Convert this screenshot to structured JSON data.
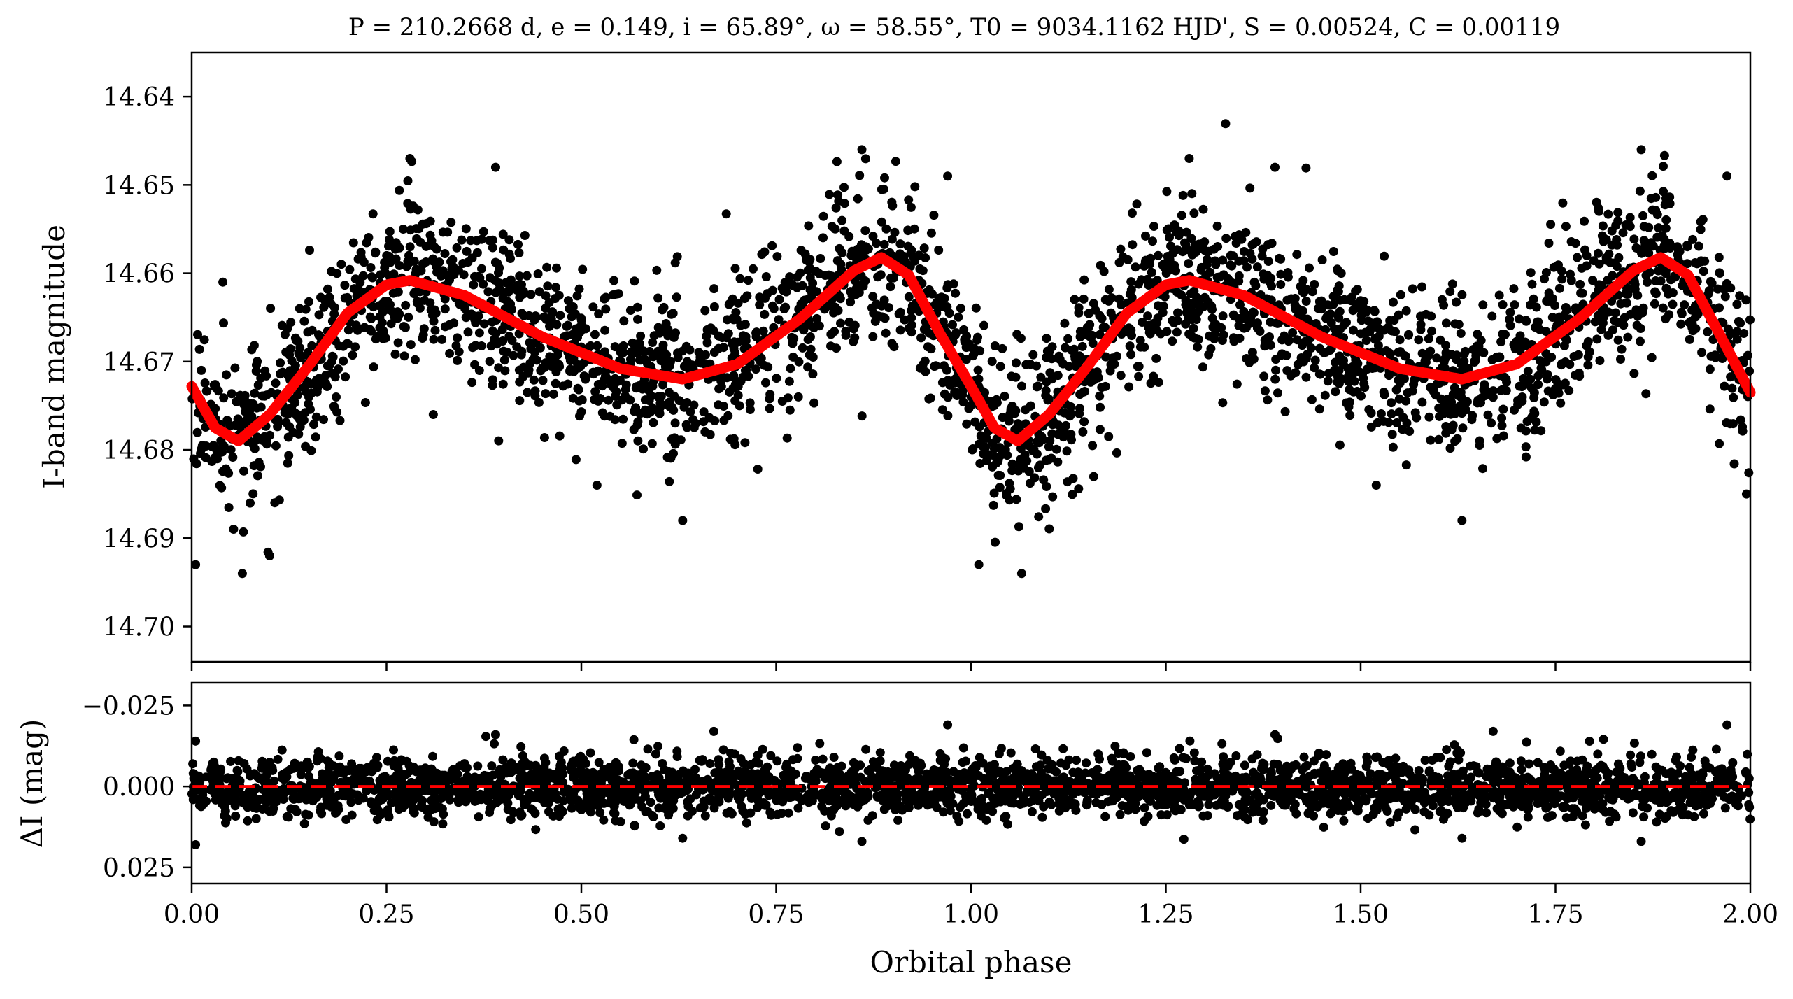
{
  "chart_data": [
    {
      "panel": "top",
      "type": "scatter",
      "title": "P = 210.2668 d, e = 0.149, i = 65.89°, ω = 58.55°, T0 = 9034.1162 HJD', S = 0.00524, C = 0.00119",
      "xlabel": "",
      "ylabel": "I-band magnitude",
      "xlim": [
        0.0,
        2.0
      ],
      "ylim": [
        14.704,
        14.635
      ],
      "y_inverted": true,
      "xticks": [
        0.0,
        0.25,
        0.5,
        0.75,
        1.0,
        1.25,
        1.5,
        1.75,
        2.0
      ],
      "yticks": [
        14.64,
        14.65,
        14.66,
        14.67,
        14.68,
        14.69,
        14.7
      ],
      "ytick_labels": [
        "14.64",
        "14.65",
        "14.66",
        "14.67",
        "14.68",
        "14.69",
        "14.70"
      ],
      "point_color": "#000000",
      "model_color": "#ff0000",
      "model_curve": {
        "x": [
          0.0,
          0.03,
          0.06,
          0.1,
          0.15,
          0.2,
          0.25,
          0.28,
          0.35,
          0.45,
          0.55,
          0.63,
          0.7,
          0.78,
          0.85,
          0.885,
          0.92,
          0.96,
          1.0,
          1.03,
          1.06,
          1.1,
          1.15,
          1.2,
          1.25,
          1.28,
          1.35,
          1.45,
          1.55,
          1.63,
          1.7,
          1.78,
          1.85,
          1.885,
          1.92,
          1.96,
          2.0
        ],
        "y": [
          14.6728,
          14.6775,
          14.679,
          14.676,
          14.6705,
          14.6645,
          14.6613,
          14.6608,
          14.6625,
          14.6672,
          14.6708,
          14.672,
          14.6703,
          14.6652,
          14.6597,
          14.6582,
          14.6602,
          14.6668,
          14.6728,
          14.6775,
          14.679,
          14.676,
          14.6705,
          14.6645,
          14.6613,
          14.6608,
          14.6625,
          14.6672,
          14.6708,
          14.672,
          14.6703,
          14.6652,
          14.6597,
          14.6582,
          14.6602,
          14.6668,
          14.6735
        ]
      },
      "observations": {
        "n_points": 3000,
        "scatter_mag": 0.0045,
        "outliers": [
          {
            "x": 0.005,
            "y": 14.693
          },
          {
            "x": 0.065,
            "y": 14.694
          },
          {
            "x": 0.1,
            "y": 14.692
          },
          {
            "x": 0.04,
            "y": 14.661
          },
          {
            "x": 0.28,
            "y": 14.647
          },
          {
            "x": 0.39,
            "y": 14.648
          },
          {
            "x": 0.31,
            "y": 14.676
          },
          {
            "x": 0.63,
            "y": 14.688
          },
          {
            "x": 0.52,
            "y": 14.684
          },
          {
            "x": 0.86,
            "y": 14.646
          },
          {
            "x": 0.97,
            "y": 14.649
          },
          {
            "x": 1.01,
            "y": 14.693
          },
          {
            "x": 1.065,
            "y": 14.694
          },
          {
            "x": 1.28,
            "y": 14.647
          },
          {
            "x": 1.39,
            "y": 14.648
          },
          {
            "x": 1.52,
            "y": 14.684
          },
          {
            "x": 1.63,
            "y": 14.688
          },
          {
            "x": 1.86,
            "y": 14.646
          },
          {
            "x": 1.97,
            "y": 14.649
          },
          {
            "x": 1.995,
            "y": 14.685
          }
        ]
      }
    },
    {
      "panel": "bottom",
      "type": "scatter",
      "title": "",
      "xlabel": "Orbital phase",
      "ylabel": "ΔI (mag)",
      "xlim": [
        0.0,
        2.0
      ],
      "ylim": [
        0.03,
        -0.032
      ],
      "y_inverted": true,
      "xticks": [
        0.0,
        0.25,
        0.5,
        0.75,
        1.0,
        1.25,
        1.5,
        1.75,
        2.0
      ],
      "xtick_labels": [
        "0.00",
        "0.25",
        "0.50",
        "0.75",
        "1.00",
        "1.25",
        "1.50",
        "1.75",
        "2.00"
      ],
      "yticks": [
        -0.025,
        0.0,
        0.025
      ],
      "ytick_labels": [
        "−0.025",
        "0.000",
        "0.025"
      ],
      "reference_line": {
        "y": 0.0,
        "style": "dashed",
        "color": "#ff0000"
      },
      "observations": {
        "n_points": 3000,
        "scatter_mag": 0.0045,
        "outliers": [
          {
            "x": 0.005,
            "y": 0.018
          },
          {
            "x": 0.005,
            "y": -0.014
          },
          {
            "x": 0.39,
            "y": -0.016
          },
          {
            "x": 0.67,
            "y": -0.017
          },
          {
            "x": 0.86,
            "y": 0.017
          },
          {
            "x": 0.97,
            "y": -0.019
          },
          {
            "x": 1.39,
            "y": -0.016
          },
          {
            "x": 1.67,
            "y": -0.017
          },
          {
            "x": 1.86,
            "y": 0.017
          },
          {
            "x": 1.97,
            "y": -0.019
          },
          {
            "x": 0.63,
            "y": 0.016
          },
          {
            "x": 1.63,
            "y": 0.016
          }
        ]
      }
    }
  ]
}
